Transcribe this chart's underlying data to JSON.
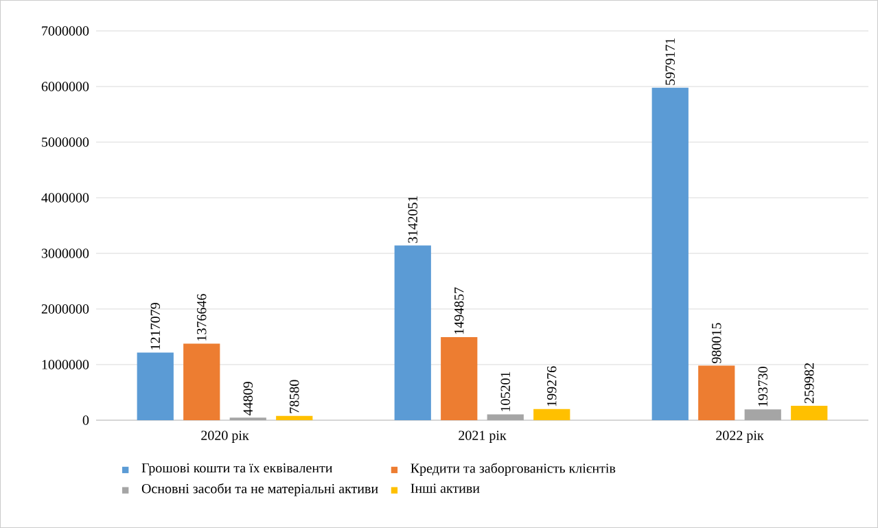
{
  "chart_data": {
    "type": "bar",
    "categories": [
      "2020 рік",
      "2021 рік",
      "2022 рік"
    ],
    "series": [
      {
        "name": "Грошові кошти та їх еквіваленти",
        "color": "#5b9bd5",
        "values": [
          1217079,
          3142051,
          5979171
        ]
      },
      {
        "name": "Кредити та заборгованість клієнтів",
        "color": "#ed7d31",
        "values": [
          1376646,
          1494857,
          980015
        ]
      },
      {
        "name": "Основні засоби та не матеріальні активи",
        "color": "#a5a5a5",
        "values": [
          44809,
          105201,
          193730
        ]
      },
      {
        "name": "Інші активи",
        "color": "#ffc000",
        "values": [
          78580,
          199276,
          259982
        ]
      }
    ],
    "ylim": [
      0,
      7000000
    ],
    "yticks": [
      0,
      1000000,
      2000000,
      3000000,
      4000000,
      5000000,
      6000000,
      7000000
    ],
    "grid": "y",
    "legend": "bottom",
    "data_labels": true
  }
}
